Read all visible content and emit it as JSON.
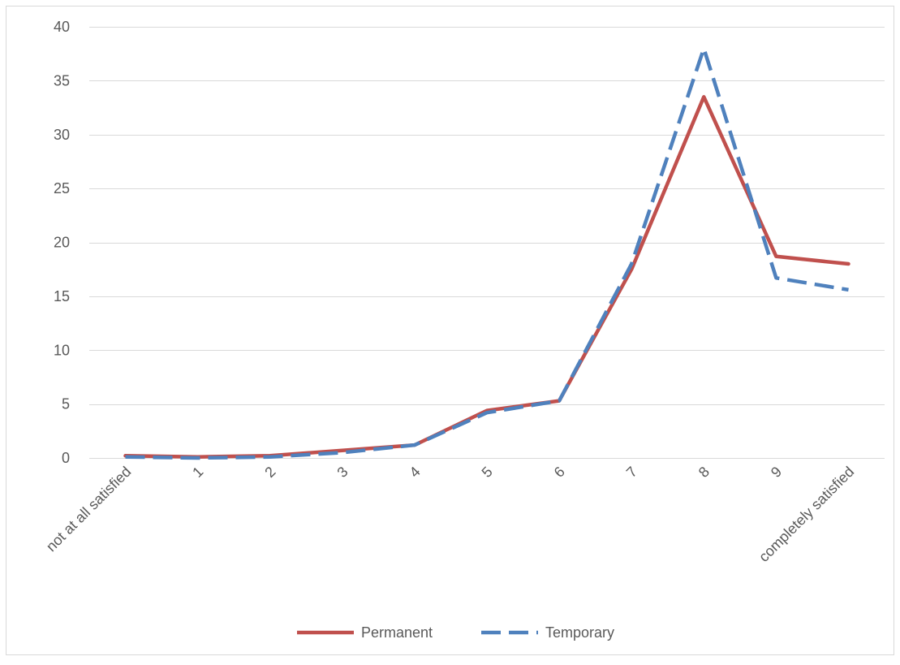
{
  "chart_data": {
    "type": "line",
    "categories": [
      "not at all satisfied",
      "1",
      "2",
      "3",
      "4",
      "5",
      "6",
      "7",
      "8",
      "9",
      "completely satisfied"
    ],
    "series": [
      {
        "name": "Permanent",
        "color": "#C0504D",
        "style": "solid",
        "values": [
          0.2,
          0.1,
          0.2,
          0.7,
          1.2,
          4.4,
          5.3,
          17.5,
          33.5,
          18.7,
          18.0
        ]
      },
      {
        "name": "Temporary",
        "color": "#4F81BD",
        "style": "dashed",
        "values": [
          0.1,
          0.0,
          0.1,
          0.5,
          1.2,
          4.2,
          5.3,
          18.0,
          38.0,
          16.7,
          15.6
        ]
      }
    ],
    "ylim": [
      0,
      40
    ],
    "yticks": [
      0,
      5,
      10,
      15,
      20,
      25,
      30,
      35,
      40
    ],
    "grid": true,
    "legend_position": "bottom",
    "title": "",
    "xlabel": "",
    "ylabel": ""
  }
}
